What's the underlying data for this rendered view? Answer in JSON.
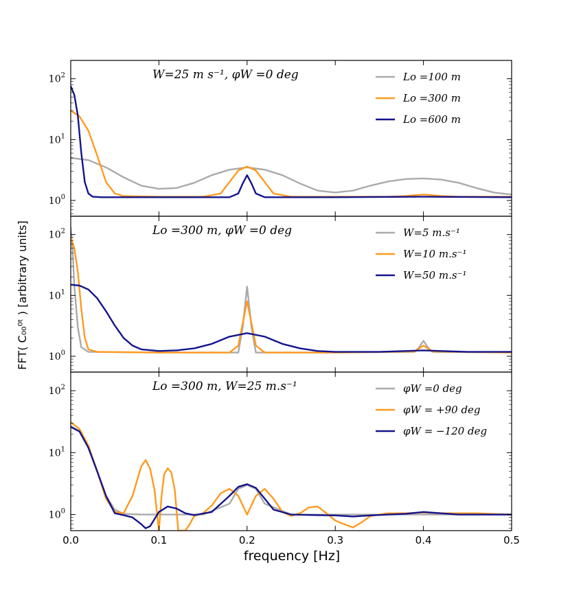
{
  "chart_data": [
    {
      "type": "line",
      "title": "W=25 m s⁻¹, φW =0 deg",
      "yscale": "log",
      "ylim": [
        0.55,
        200
      ],
      "xlim": [
        0.0,
        0.5
      ],
      "legend_position": "top-right",
      "series": [
        {
          "name": "Lo =100 m",
          "color": "#aaaaaa",
          "x": [
            0,
            0.02,
            0.04,
            0.06,
            0.08,
            0.1,
            0.12,
            0.14,
            0.16,
            0.18,
            0.2,
            0.22,
            0.24,
            0.26,
            0.28,
            0.3,
            0.32,
            0.34,
            0.36,
            0.38,
            0.4,
            0.42,
            0.44,
            0.46,
            0.48,
            0.5
          ],
          "y": [
            5.0,
            4.6,
            3.5,
            2.4,
            1.75,
            1.55,
            1.6,
            1.95,
            2.6,
            3.2,
            3.5,
            3.2,
            2.6,
            1.9,
            1.45,
            1.35,
            1.45,
            1.75,
            2.05,
            2.25,
            2.3,
            2.2,
            1.95,
            1.6,
            1.35,
            1.25
          ]
        },
        {
          "name": "Lo =300 m",
          "color": "#ff9a1f",
          "x": [
            0,
            0.01,
            0.02,
            0.03,
            0.04,
            0.05,
            0.06,
            0.1,
            0.15,
            0.17,
            0.18,
            0.19,
            0.2,
            0.21,
            0.22,
            0.23,
            0.25,
            0.3,
            0.36,
            0.38,
            0.39,
            0.4,
            0.41,
            0.42,
            0.44,
            0.5
          ],
          "y": [
            30,
            24,
            14,
            5.5,
            2.0,
            1.3,
            1.18,
            1.15,
            1.15,
            1.3,
            2.0,
            3.1,
            3.6,
            3.1,
            2.0,
            1.3,
            1.15,
            1.15,
            1.15,
            1.18,
            1.22,
            1.25,
            1.22,
            1.18,
            1.15,
            1.15
          ]
        },
        {
          "name": "Lo =600 m",
          "color": "#14148c",
          "x": [
            0,
            0.004,
            0.008,
            0.012,
            0.016,
            0.02,
            0.025,
            0.035,
            0.1,
            0.18,
            0.19,
            0.195,
            0.2,
            0.205,
            0.21,
            0.22,
            0.3,
            0.4,
            0.5
          ],
          "y": [
            75,
            55,
            25,
            6,
            2.0,
            1.3,
            1.15,
            1.13,
            1.13,
            1.13,
            1.3,
            1.9,
            2.6,
            1.9,
            1.3,
            1.13,
            1.13,
            1.15,
            1.13
          ]
        }
      ]
    },
    {
      "type": "line",
      "title": "Lo =300 m, φW =0 deg",
      "yscale": "log",
      "ylim": [
        0.55,
        200
      ],
      "xlim": [
        0.0,
        0.5
      ],
      "legend_position": "top-right",
      "series": [
        {
          "name": "W=5 m.s⁻¹",
          "color": "#aaaaaa",
          "x": [
            0,
            0.002,
            0.004,
            0.008,
            0.012,
            0.02,
            0.1,
            0.19,
            0.195,
            0.2,
            0.205,
            0.21,
            0.3,
            0.39,
            0.395,
            0.4,
            0.405,
            0.41,
            0.5
          ],
          "y": [
            130,
            60,
            15,
            3,
            1.4,
            1.18,
            1.15,
            1.15,
            3,
            14,
            3,
            1.15,
            1.15,
            1.18,
            1.4,
            1.8,
            1.4,
            1.18,
            1.15
          ]
        },
        {
          "name": "W=10 m.s⁻¹",
          "color": "#ff9a1f",
          "x": [
            0,
            0.004,
            0.008,
            0.012,
            0.016,
            0.02,
            0.03,
            0.1,
            0.18,
            0.19,
            0.195,
            0.2,
            0.205,
            0.21,
            0.22,
            0.3,
            0.39,
            0.4,
            0.41,
            0.5
          ],
          "y": [
            90,
            60,
            25,
            6,
            2.0,
            1.3,
            1.18,
            1.15,
            1.15,
            1.5,
            3.5,
            8,
            3.5,
            1.5,
            1.15,
            1.15,
            1.2,
            1.5,
            1.2,
            1.15
          ]
        },
        {
          "name": "W=50 m.s⁻¹",
          "color": "#14148c",
          "x": [
            0,
            0.01,
            0.02,
            0.03,
            0.04,
            0.05,
            0.06,
            0.07,
            0.08,
            0.1,
            0.12,
            0.14,
            0.16,
            0.18,
            0.2,
            0.22,
            0.24,
            0.26,
            0.28,
            0.3,
            0.35,
            0.4,
            0.45,
            0.5
          ],
          "y": [
            15,
            14.5,
            12.5,
            9,
            5.5,
            3.2,
            2.0,
            1.5,
            1.3,
            1.22,
            1.25,
            1.35,
            1.6,
            2.1,
            2.4,
            2.1,
            1.6,
            1.35,
            1.22,
            1.18,
            1.18,
            1.25,
            1.18,
            1.18
          ]
        }
      ]
    },
    {
      "type": "line",
      "title": "Lo =300 m, W=25 m.s⁻¹",
      "yscale": "log",
      "ylim": [
        0.55,
        200
      ],
      "xlim": [
        0.0,
        0.5
      ],
      "legend_position": "top-right",
      "series": [
        {
          "name": "φW =0 deg",
          "color": "#aaaaaa",
          "x": [
            0,
            0.01,
            0.02,
            0.03,
            0.04,
            0.05,
            0.06,
            0.08,
            0.1,
            0.15,
            0.18,
            0.19,
            0.2,
            0.21,
            0.22,
            0.25,
            0.3,
            0.4,
            0.5
          ],
          "y": [
            27,
            22,
            12,
            5,
            2.0,
            1.2,
            1.03,
            1.0,
            1.0,
            1.0,
            1.5,
            2.6,
            3.0,
            2.6,
            1.5,
            1.0,
            1.0,
            1.0,
            1.0
          ]
        },
        {
          "name": "φW = +90 deg",
          "color": "#ff9a1f",
          "x": [
            0,
            0.01,
            0.02,
            0.03,
            0.04,
            0.05,
            0.06,
            0.07,
            0.08,
            0.085,
            0.09,
            0.095,
            0.1,
            0.103,
            0.106,
            0.11,
            0.114,
            0.118,
            0.122,
            0.126,
            0.13,
            0.135,
            0.14,
            0.15,
            0.16,
            0.17,
            0.18,
            0.19,
            0.2,
            0.21,
            0.22,
            0.23,
            0.24,
            0.25,
            0.26,
            0.27,
            0.28,
            0.29,
            0.3,
            0.31,
            0.32,
            0.33,
            0.34,
            0.36,
            0.38,
            0.4,
            0.42,
            0.44,
            0.46,
            0.5
          ],
          "y": [
            31,
            24,
            13,
            5,
            1.8,
            1.1,
            1.05,
            2.0,
            6,
            7.6,
            5.5,
            2.5,
            0.52,
            2.0,
            4.5,
            5.6,
            4.8,
            2.5,
            0.52,
            0.52,
            0.52,
            0.7,
            0.95,
            1.05,
            1.4,
            2.2,
            2.6,
            2.0,
            1.0,
            2.0,
            2.6,
            1.8,
            1.1,
            0.95,
            1.05,
            1.3,
            1.35,
            1.05,
            0.8,
            0.7,
            0.62,
            0.75,
            0.95,
            1.05,
            1.05,
            1.08,
            1.05,
            1.05,
            1.05,
            1.0
          ]
        },
        {
          "name": "φW = −120 deg",
          "color": "#14148c",
          "x": [
            0,
            0.01,
            0.02,
            0.03,
            0.04,
            0.05,
            0.06,
            0.07,
            0.08,
            0.085,
            0.09,
            0.1,
            0.11,
            0.12,
            0.13,
            0.14,
            0.16,
            0.18,
            0.19,
            0.2,
            0.21,
            0.22,
            0.23,
            0.25,
            0.28,
            0.3,
            0.32,
            0.34,
            0.36,
            0.38,
            0.4,
            0.42,
            0.44,
            0.5
          ],
          "y": [
            26,
            22,
            12,
            5,
            2.0,
            1.05,
            0.98,
            0.9,
            0.7,
            0.6,
            0.65,
            1.1,
            1.35,
            1.25,
            1.05,
            0.98,
            1.1,
            2.0,
            2.8,
            3.1,
            2.7,
            1.8,
            1.2,
            1.0,
            0.98,
            0.97,
            0.93,
            0.97,
            1.0,
            1.03,
            1.1,
            1.05,
            1.0,
            1.0
          ]
        }
      ]
    }
  ],
  "y_tick_labels": [
    {
      "base": "10",
      "exp": "0"
    },
    {
      "base": "10",
      "exp": "1"
    },
    {
      "base": "10",
      "exp": "2"
    }
  ],
  "x_tick_labels": [
    "0.0",
    "0.1",
    "0.2",
    "0.3",
    "0.4",
    "0.5"
  ],
  "xlabel": "frequency [Hz]",
  "ylabel": "FFT( C₀₀⁰ᵗ ) [arbitrary units]"
}
